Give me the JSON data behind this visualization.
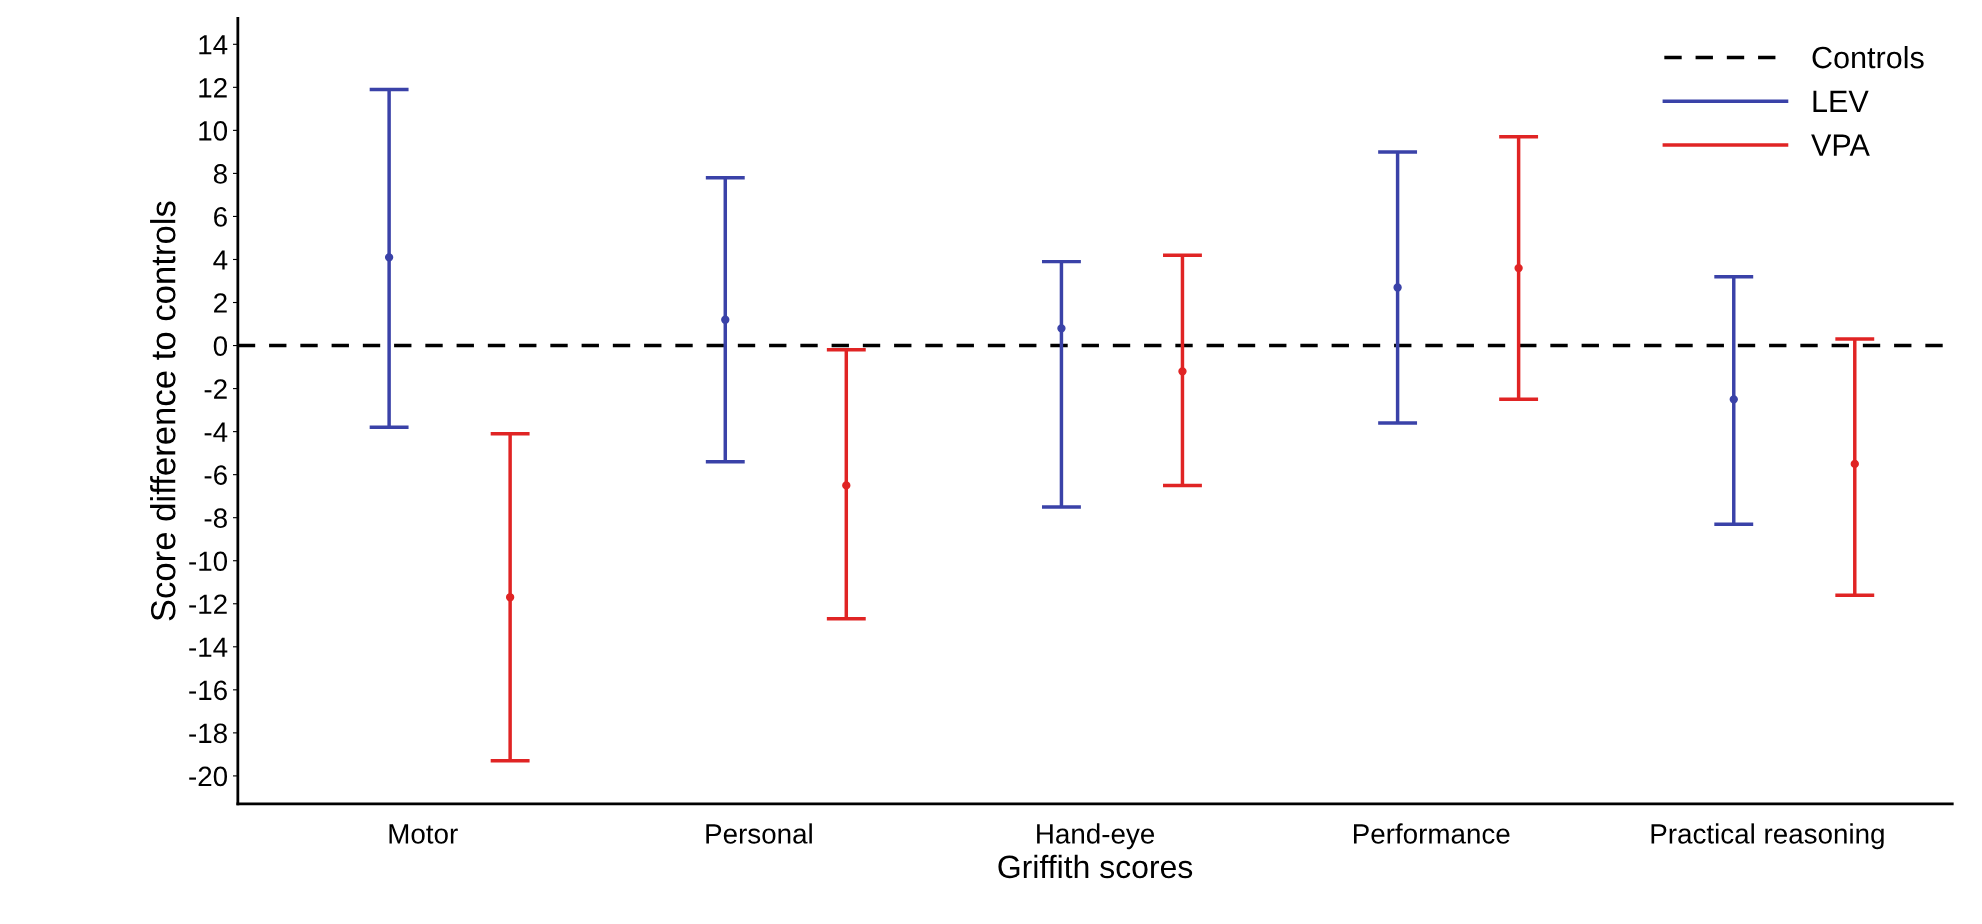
{
  "chart_data": {
    "type": "scatter",
    "xlabel": "Griffith scores",
    "ylabel": "Score difference to controls",
    "categories": [
      "Motor",
      "Personal",
      "Hand-eye",
      "Performance",
      "Practical reasoning"
    ],
    "series": [
      {
        "name": "LEV",
        "color": "#3a42a8",
        "values": [
          4.1,
          1.2,
          0.8,
          2.7,
          -2.5
        ],
        "errors": [
          [
            -3.8,
            11.9
          ],
          [
            -5.4,
            7.8
          ],
          [
            -7.5,
            3.9
          ],
          [
            -3.6,
            9.0
          ],
          [
            -8.3,
            3.2
          ]
        ]
      },
      {
        "name": "VPA",
        "color": "#e02424",
        "values": [
          -11.7,
          -6.5,
          -1.2,
          3.6,
          -5.5
        ],
        "errors": [
          [
            -19.3,
            -4.1
          ],
          [
            -12.7,
            -0.2
          ],
          [
            -6.5,
            4.2
          ],
          [
            -2.5,
            9.7
          ],
          [
            -11.6,
            0.3
          ]
        ]
      }
    ],
    "ref_lines": [
      {
        "axis": "y",
        "value": 0,
        "label": "Controls",
        "color": "#000000",
        "line_style": "dashed"
      }
    ],
    "ylim": [
      -21.3,
      15.2
    ],
    "yticks": [
      -20,
      -18,
      -16,
      -14,
      -12,
      -10,
      -8,
      -6,
      -4,
      -2,
      0,
      2,
      4,
      6,
      8,
      10,
      12,
      14
    ],
    "marker": "circle",
    "grid": false,
    "legend": "top right"
  }
}
